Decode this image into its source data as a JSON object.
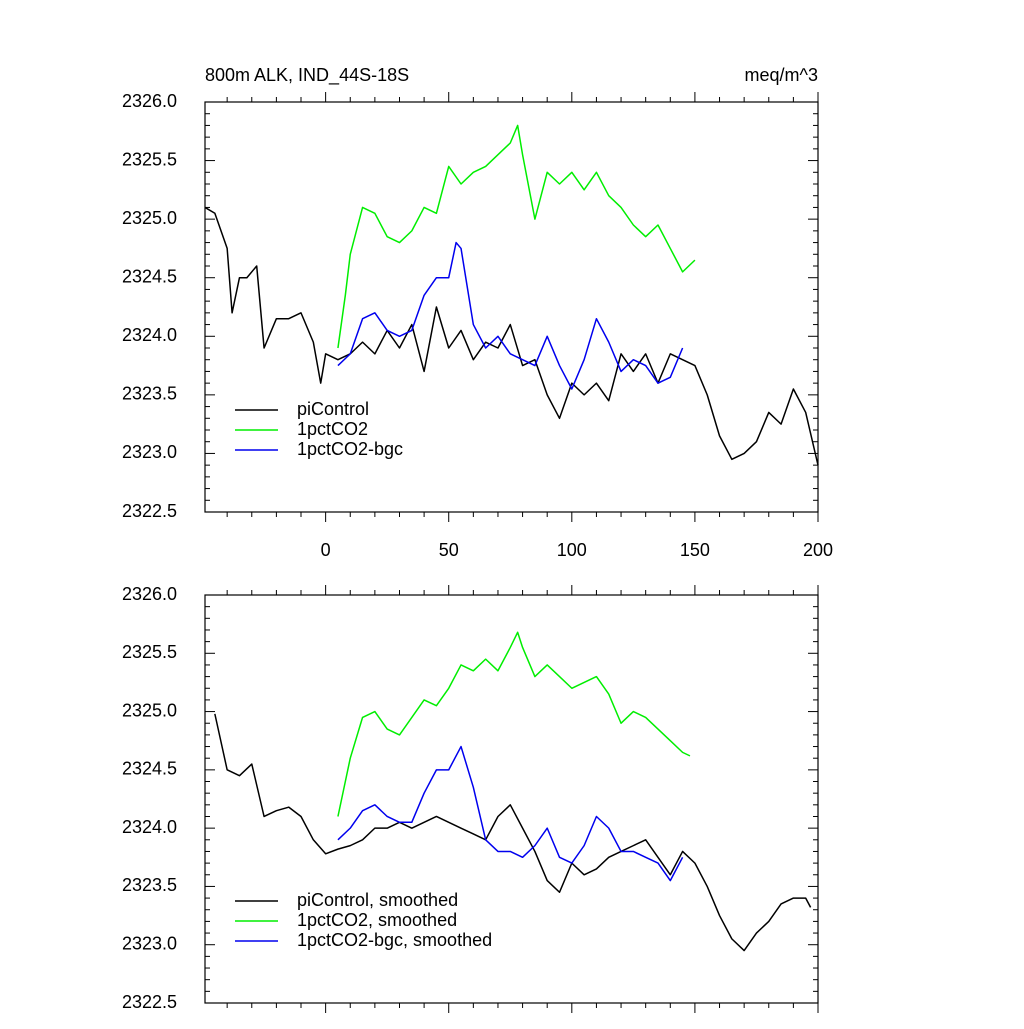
{
  "chart_data": [
    {
      "type": "line",
      "title": "800m ALK, IND_44S-18S",
      "subtitle": "meq/m^3",
      "xlim": [
        -49,
        200
      ],
      "xticks": [
        0,
        50,
        100,
        150,
        200
      ],
      "xtick_labels": true,
      "ylim": [
        2322.5,
        2326.0
      ],
      "yticks": [
        {
          "value": 2322.5,
          "label": "2322.5"
        },
        {
          "value": 2323.0,
          "label": "2323.0"
        },
        {
          "value": 2323.5,
          "label": "2323.5"
        },
        {
          "value": 2324.0,
          "label": "2324.0"
        },
        {
          "value": 2324.5,
          "label": "2324.5"
        },
        {
          "value": 2325.0,
          "label": "2325.0"
        },
        {
          "value": 2325.5,
          "label": "2325.5"
        },
        {
          "value": 2326.0,
          "label": "2326.0"
        }
      ],
      "legend": "lower left",
      "series": [
        {
          "name": "piControl",
          "color": "#000000",
          "x": [
            -49,
            -45,
            -40,
            -38,
            -35,
            -32,
            -28,
            -25,
            -20,
            -15,
            -10,
            -5,
            -2,
            0,
            5,
            10,
            15,
            20,
            25,
            30,
            35,
            40,
            45,
            50,
            55,
            60,
            65,
            70,
            75,
            80,
            85,
            90,
            95,
            100,
            105,
            110,
            115,
            120,
            125,
            130,
            135,
            140,
            145,
            150,
            155,
            160,
            165,
            170,
            175,
            180,
            185,
            190,
            195,
            200
          ],
          "values": [
            2325.1,
            2325.05,
            2324.75,
            2324.2,
            2324.5,
            2324.5,
            2324.6,
            2323.9,
            2324.15,
            2324.15,
            2324.2,
            2323.95,
            2323.6,
            2323.85,
            2323.8,
            2323.85,
            2323.95,
            2323.85,
            2324.05,
            2323.9,
            2324.1,
            2323.7,
            2324.25,
            2323.9,
            2324.05,
            2323.8,
            2323.95,
            2323.9,
            2324.1,
            2323.75,
            2323.8,
            2323.5,
            2323.3,
            2323.6,
            2323.5,
            2323.6,
            2323.45,
            2323.85,
            2323.7,
            2323.85,
            2323.6,
            2323.85,
            2323.8,
            2323.75,
            2323.5,
            2323.15,
            2322.95,
            2323.0,
            2323.1,
            2323.35,
            2323.25,
            2323.55,
            2323.35,
            2322.9
          ]
        },
        {
          "name": "1pctCO2",
          "color": "#00ee00",
          "x": [
            5,
            8,
            10,
            15,
            20,
            25,
            30,
            35,
            40,
            45,
            50,
            55,
            60,
            65,
            70,
            75,
            78,
            80,
            85,
            90,
            95,
            100,
            105,
            110,
            115,
            120,
            125,
            130,
            135,
            140,
            145,
            150
          ],
          "values": [
            2323.9,
            2324.35,
            2324.7,
            2325.1,
            2325.05,
            2324.85,
            2324.8,
            2324.9,
            2325.1,
            2325.05,
            2325.45,
            2325.3,
            2325.4,
            2325.45,
            2325.55,
            2325.65,
            2325.8,
            2325.55,
            2325.0,
            2325.4,
            2325.3,
            2325.4,
            2325.25,
            2325.4,
            2325.2,
            2325.1,
            2324.95,
            2324.85,
            2324.95,
            2324.75,
            2324.55,
            2324.65
          ]
        },
        {
          "name": "1pctCO2-bgc",
          "color": "#0000ee",
          "x": [
            5,
            10,
            15,
            20,
            25,
            30,
            35,
            40,
            45,
            50,
            53,
            55,
            60,
            65,
            70,
            75,
            80,
            85,
            90,
            95,
            100,
            105,
            110,
            115,
            120,
            125,
            130,
            135,
            140,
            145
          ],
          "values": [
            2323.75,
            2323.85,
            2324.15,
            2324.2,
            2324.05,
            2324.0,
            2324.05,
            2324.35,
            2324.5,
            2324.5,
            2324.8,
            2324.75,
            2324.1,
            2323.9,
            2324.0,
            2323.85,
            2323.8,
            2323.75,
            2324.0,
            2323.75,
            2323.55,
            2323.8,
            2324.15,
            2323.95,
            2323.7,
            2323.8,
            2323.75,
            2323.6,
            2323.65,
            2323.9
          ]
        }
      ]
    },
    {
      "type": "line",
      "xlim": [
        -49,
        200
      ],
      "xticks": [
        0,
        50,
        100,
        150,
        200
      ],
      "xtick_labels": false,
      "ylim": [
        2322.5,
        2326.0
      ],
      "yticks": [
        {
          "value": 2322.5,
          "label": "2322.5"
        },
        {
          "value": 2323.0,
          "label": "2323.0"
        },
        {
          "value": 2323.5,
          "label": "2323.5"
        },
        {
          "value": 2324.0,
          "label": "2324.0"
        },
        {
          "value": 2324.5,
          "label": "2324.5"
        },
        {
          "value": 2325.0,
          "label": "2325.0"
        },
        {
          "value": 2325.5,
          "label": "2325.5"
        },
        {
          "value": 2326.0,
          "label": "2326.0"
        }
      ],
      "legend": "lower left",
      "series": [
        {
          "name": "piControl, smoothed",
          "color": "#000000",
          "x": [
            -45,
            -40,
            -35,
            -30,
            -25,
            -20,
            -15,
            -10,
            -5,
            0,
            5,
            10,
            15,
            20,
            25,
            30,
            35,
            40,
            45,
            50,
            55,
            60,
            65,
            70,
            75,
            80,
            85,
            90,
            95,
            100,
            105,
            110,
            115,
            120,
            125,
            130,
            135,
            140,
            145,
            150,
            155,
            160,
            165,
            170,
            175,
            180,
            185,
            190,
            195,
            197
          ],
          "values": [
            2324.98,
            2324.5,
            2324.45,
            2324.55,
            2324.1,
            2324.15,
            2324.18,
            2324.1,
            2323.9,
            2323.78,
            2323.82,
            2323.85,
            2323.9,
            2324.0,
            2324.0,
            2324.05,
            2324.0,
            2324.05,
            2324.1,
            2324.05,
            2324.0,
            2323.95,
            2323.9,
            2324.1,
            2324.2,
            2324.0,
            2323.8,
            2323.55,
            2323.45,
            2323.7,
            2323.6,
            2323.65,
            2323.75,
            2323.8,
            2323.85,
            2323.9,
            2323.75,
            2323.6,
            2323.8,
            2323.7,
            2323.5,
            2323.25,
            2323.05,
            2322.95,
            2323.1,
            2323.2,
            2323.35,
            2323.4,
            2323.4,
            2323.32
          ]
        },
        {
          "name": "1pctCO2, smoothed",
          "color": "#00ee00",
          "x": [
            5,
            10,
            15,
            20,
            25,
            30,
            35,
            40,
            45,
            50,
            55,
            60,
            65,
            70,
            75,
            78,
            80,
            85,
            90,
            95,
            100,
            105,
            110,
            115,
            120,
            125,
            130,
            135,
            140,
            145,
            148
          ],
          "values": [
            2324.1,
            2324.6,
            2324.95,
            2325.0,
            2324.85,
            2324.8,
            2324.95,
            2325.1,
            2325.05,
            2325.2,
            2325.4,
            2325.35,
            2325.45,
            2325.35,
            2325.55,
            2325.68,
            2325.55,
            2325.3,
            2325.4,
            2325.3,
            2325.2,
            2325.25,
            2325.3,
            2325.15,
            2324.9,
            2325.0,
            2324.95,
            2324.85,
            2324.75,
            2324.65,
            2324.62
          ]
        },
        {
          "name": "1pctCO2-bgc, smoothed",
          "color": "#0000ee",
          "x": [
            5,
            10,
            15,
            20,
            25,
            30,
            35,
            40,
            45,
            50,
            55,
            60,
            65,
            70,
            75,
            80,
            85,
            90,
            95,
            100,
            105,
            110,
            115,
            120,
            125,
            130,
            135,
            140,
            145
          ],
          "values": [
            2323.9,
            2324.0,
            2324.15,
            2324.2,
            2324.1,
            2324.05,
            2324.05,
            2324.3,
            2324.5,
            2324.5,
            2324.7,
            2324.35,
            2323.9,
            2323.8,
            2323.8,
            2323.75,
            2323.85,
            2324.0,
            2323.75,
            2323.7,
            2323.85,
            2324.1,
            2324.0,
            2323.8,
            2323.8,
            2323.75,
            2323.7,
            2323.55,
            2323.75
          ]
        }
      ]
    }
  ]
}
